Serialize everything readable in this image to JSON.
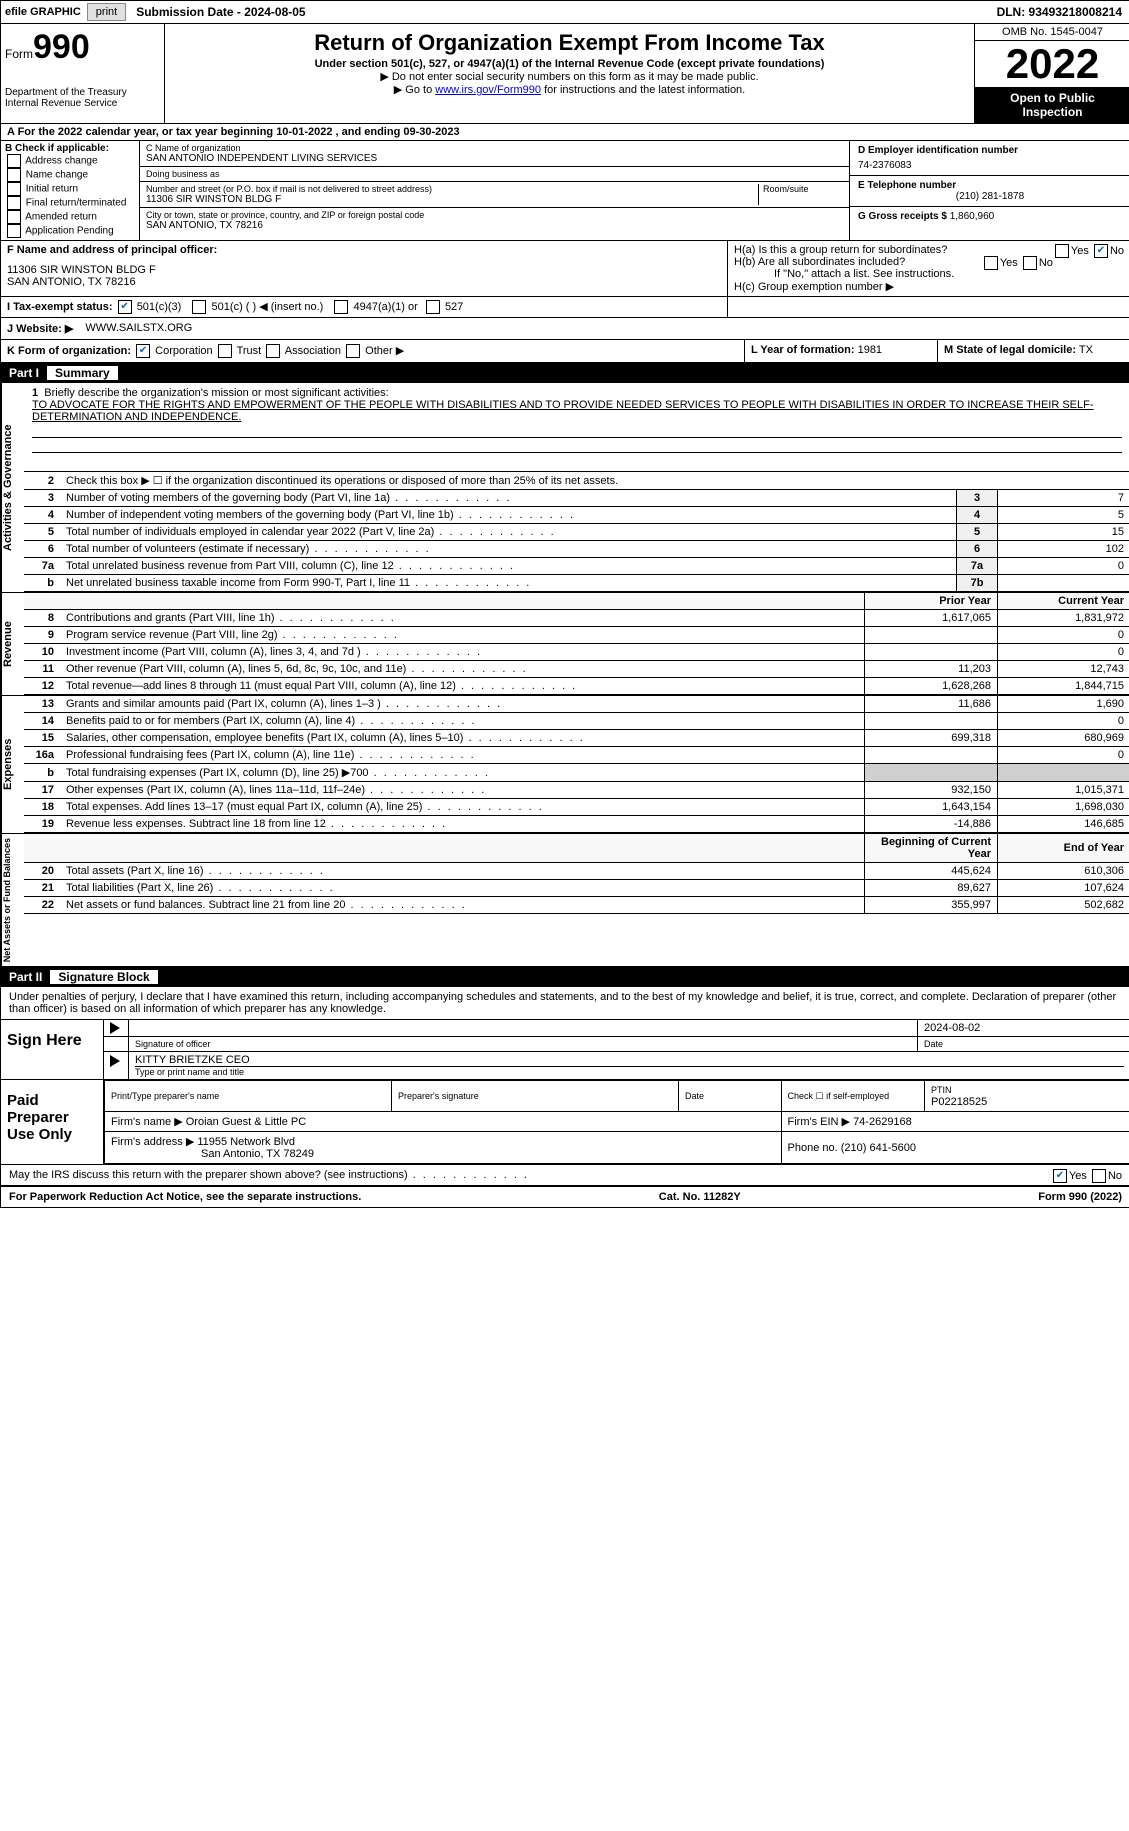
{
  "topbar": {
    "efile": "efile GRAPHIC",
    "print": "print",
    "submission": "Submission Date - 2024-08-05",
    "dln": "DLN: 93493218008214"
  },
  "header": {
    "form_label": "Form",
    "form_number": "990",
    "dept": "Department of the Treasury",
    "irs": "Internal Revenue Service",
    "title": "Return of Organization Exempt From Income Tax",
    "subtitle": "Under section 501(c), 527, or 4947(a)(1) of the Internal Revenue Code (except private foundations)",
    "note1": "▶ Do not enter social security numbers on this form as it may be made public.",
    "note2_prefix": "▶ Go to ",
    "note2_link": "www.irs.gov/Form990",
    "note2_suffix": " for instructions and the latest information.",
    "omb": "OMB No. 1545-0047",
    "year": "2022",
    "inspection": "Open to Public Inspection"
  },
  "period": "A For the 2022 calendar year, or tax year beginning 10-01-2022     , and ending 09-30-2023",
  "section_b": {
    "label": "B Check if applicable:",
    "opts": [
      "Address change",
      "Name change",
      "Initial return",
      "Final return/terminated",
      "Amended return",
      "Application Pending"
    ]
  },
  "section_c": {
    "name_label": "C Name of organization",
    "name": "SAN ANTONIO INDEPENDENT LIVING SERVICES",
    "dba_label": "Doing business as",
    "dba": "",
    "addr_label": "Number and street (or P.O. box if mail is not delivered to street address)",
    "addr": "11306 SIR WINSTON BLDG F",
    "room_label": "Room/suite",
    "city_label": "City or town, state or province, country, and ZIP or foreign postal code",
    "city": "SAN ANTONIO, TX  78216"
  },
  "section_d": {
    "ein_label": "D Employer identification number",
    "ein": "74-2376083",
    "phone_label": "E Telephone number",
    "phone": "(210) 281-1878",
    "gross_label": "G Gross receipts $",
    "gross": "1,860,960"
  },
  "section_f": {
    "label": "F Name and address of principal officer:",
    "line1": "11306 SIR WINSTON BLDG F",
    "line2": "SAN ANTONIO, TX  78216"
  },
  "section_h": {
    "a": "H(a)  Is this a group return for subordinates?",
    "b": "H(b)  Are all subordinates included?",
    "b_note": "If \"No,\" attach a list. See instructions.",
    "c": "H(c)  Group exemption number ▶"
  },
  "section_i": {
    "label": "I   Tax-exempt status:",
    "opts": [
      "501(c)(3)",
      "501(c) (   ) ◀ (insert no.)",
      "4947(a)(1) or",
      "527"
    ]
  },
  "section_j": {
    "label": "J   Website: ▶",
    "value": "WWW.SAILSTX.ORG"
  },
  "section_k": {
    "label": "K Form of organization:",
    "opts": [
      "Corporation",
      "Trust",
      "Association",
      "Other ▶"
    ],
    "l_label": "L Year of formation:",
    "l_val": "1981",
    "m_label": "M State of legal domicile:",
    "m_val": "TX"
  },
  "part1": {
    "header_num": "Part I",
    "header_title": "Summary",
    "tab1": "Activities & Governance",
    "tab2": "Revenue",
    "tab3": "Expenses",
    "tab4": "Net Assets or Fund Balances",
    "q1_intro": "Briefly describe the organization's mission or most significant activities:",
    "q1_text": "TO ADVOCATE FOR THE RIGHTS AND EMPOWERMENT OF THE PEOPLE WITH DISABILITIES AND TO PROVIDE NEEDED SERVICES TO PEOPLE WITH DISABILITIES IN ORDER TO INCREASE THEIR SELF-DETERMINATION AND INDEPENDENCE.",
    "q2": "Check this box ▶ ☐ if the organization discontinued its operations or disposed of more than 25% of its net assets.",
    "rows_ag": [
      {
        "n": "3",
        "t": "Number of voting members of the governing body (Part VI, line 1a)",
        "b": "3",
        "v": "7"
      },
      {
        "n": "4",
        "t": "Number of independent voting members of the governing body (Part VI, line 1b)",
        "b": "4",
        "v": "5"
      },
      {
        "n": "5",
        "t": "Total number of individuals employed in calendar year 2022 (Part V, line 2a)",
        "b": "5",
        "v": "15"
      },
      {
        "n": "6",
        "t": "Total number of volunteers (estimate if necessary)",
        "b": "6",
        "v": "102"
      },
      {
        "n": "7a",
        "t": "Total unrelated business revenue from Part VIII, column (C), line 12",
        "b": "7a",
        "v": "0"
      },
      {
        "n": "b",
        "t": "Net unrelated business taxable income from Form 990-T, Part I, line 11",
        "b": "7b",
        "v": ""
      }
    ],
    "col_prior": "Prior Year",
    "col_current": "Current Year",
    "rows_rev": [
      {
        "n": "8",
        "t": "Contributions and grants (Part VIII, line 1h)",
        "p": "1,617,065",
        "c": "1,831,972"
      },
      {
        "n": "9",
        "t": "Program service revenue (Part VIII, line 2g)",
        "p": "",
        "c": "0"
      },
      {
        "n": "10",
        "t": "Investment income (Part VIII, column (A), lines 3, 4, and 7d )",
        "p": "",
        "c": "0"
      },
      {
        "n": "11",
        "t": "Other revenue (Part VIII, column (A), lines 5, 6d, 8c, 9c, 10c, and 11e)",
        "p": "11,203",
        "c": "12,743"
      },
      {
        "n": "12",
        "t": "Total revenue—add lines 8 through 11 (must equal Part VIII, column (A), line 12)",
        "p": "1,628,268",
        "c": "1,844,715"
      }
    ],
    "rows_exp": [
      {
        "n": "13",
        "t": "Grants and similar amounts paid (Part IX, column (A), lines 1–3 )",
        "p": "11,686",
        "c": "1,690"
      },
      {
        "n": "14",
        "t": "Benefits paid to or for members (Part IX, column (A), line 4)",
        "p": "",
        "c": "0"
      },
      {
        "n": "15",
        "t": "Salaries, other compensation, employee benefits (Part IX, column (A), lines 5–10)",
        "p": "699,318",
        "c": "680,969"
      },
      {
        "n": "16a",
        "t": "Professional fundraising fees (Part IX, column (A), line 11e)",
        "p": "",
        "c": "0"
      },
      {
        "n": "b",
        "t": "Total fundraising expenses (Part IX, column (D), line 25) ▶700",
        "p": "shade",
        "c": "shade"
      },
      {
        "n": "17",
        "t": "Other expenses (Part IX, column (A), lines 11a–11d, 11f–24e)",
        "p": "932,150",
        "c": "1,015,371"
      },
      {
        "n": "18",
        "t": "Total expenses. Add lines 13–17 (must equal Part IX, column (A), line 25)",
        "p": "1,643,154",
        "c": "1,698,030"
      },
      {
        "n": "19",
        "t": "Revenue less expenses. Subtract line 18 from line 12",
        "p": "-14,886",
        "c": "146,685"
      }
    ],
    "col_beg": "Beginning of Current Year",
    "col_end": "End of Year",
    "rows_na": [
      {
        "n": "20",
        "t": "Total assets (Part X, line 16)",
        "p": "445,624",
        "c": "610,306"
      },
      {
        "n": "21",
        "t": "Total liabilities (Part X, line 26)",
        "p": "89,627",
        "c": "107,624"
      },
      {
        "n": "22",
        "t": "Net assets or fund balances. Subtract line 21 from line 20",
        "p": "355,997",
        "c": "502,682"
      }
    ]
  },
  "part2": {
    "header_num": "Part II",
    "header_title": "Signature Block",
    "penalty": "Under penalties of perjury, I declare that I have examined this return, including accompanying schedules and statements, and to the best of my knowledge and belief, it is true, correct, and complete. Declaration of preparer (other than officer) is based on all information of which preparer has any knowledge.",
    "sign_here": "Sign Here",
    "sig_officer": "Signature of officer",
    "sig_date": "2024-08-02",
    "date_lbl": "Date",
    "name_title": "KITTY BRIETZKE CEO",
    "name_title_lbl": "Type or print name and title",
    "paid_label": "Paid Preparer Use Only",
    "prep_name_lbl": "Print/Type preparer's name",
    "prep_sig_lbl": "Preparer's signature",
    "prep_date_lbl": "Date",
    "prep_check": "Check ☐ if self-employed",
    "ptin_lbl": "PTIN",
    "ptin": "P02218525",
    "firm_name_lbl": "Firm's name      ▶",
    "firm_name": "Oroian Guest & Little PC",
    "firm_ein_lbl": "Firm's EIN ▶",
    "firm_ein": "74-2629168",
    "firm_addr_lbl": "Firm's address ▶",
    "firm_addr1": "11955 Network Blvd",
    "firm_addr2": "San Antonio, TX  78249",
    "firm_phone_lbl": "Phone no.",
    "firm_phone": "(210) 641-5600",
    "discuss": "May the IRS discuss this return with the preparer shown above? (see instructions)"
  },
  "footer": {
    "left": "For Paperwork Reduction Act Notice, see the separate instructions.",
    "mid": "Cat. No. 11282Y",
    "right": "Form 990 (2022)"
  }
}
